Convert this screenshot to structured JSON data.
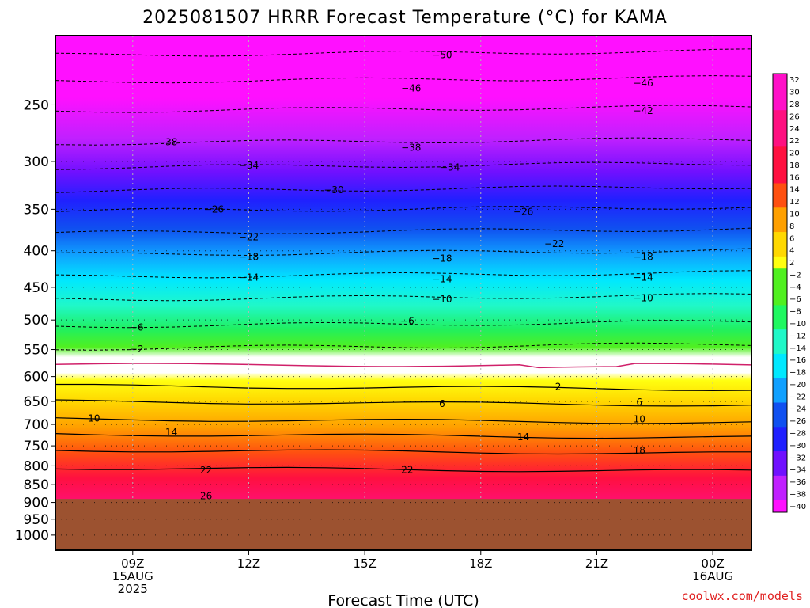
{
  "chart_data": {
    "type": "heatmap",
    "title": "2025081507 HRRR Forecast Temperature (°C) for KAMA",
    "xlabel": "Forecast Time (UTC)",
    "ylabel": "",
    "credit": "coolwx.com/models",
    "x_range_hours": [
      7,
      25
    ],
    "y_range_hpa": [
      200,
      1050
    ],
    "y_scale": "log",
    "y_ticks": [
      250,
      300,
      350,
      400,
      450,
      500,
      550,
      600,
      650,
      700,
      750,
      800,
      850,
      900,
      950,
      1000
    ],
    "x_ticks": [
      {
        "hour": 9,
        "lines": [
          "09Z",
          "15AUG",
          "2025"
        ]
      },
      {
        "hour": 12,
        "lines": [
          "12Z"
        ]
      },
      {
        "hour": 15,
        "lines": [
          "15Z"
        ]
      },
      {
        "hour": 18,
        "lines": [
          "18Z"
        ]
      },
      {
        "hour": 21,
        "lines": [
          "21Z"
        ]
      },
      {
        "hour": 24,
        "lines": [
          "00Z",
          "16AUG"
        ]
      }
    ],
    "surface_pressure_hpa": 890,
    "colors": {
      "ground": "#9c5230",
      "grid": "#b4b4b4",
      "zero_line": "#d0206a"
    },
    "colorbar": {
      "levels": [
        -40,
        -38,
        -36,
        -34,
        -32,
        -30,
        -28,
        -26,
        -24,
        -22,
        -20,
        -18,
        -16,
        -14,
        -12,
        -10,
        -8,
        -6,
        -4,
        -2,
        2,
        4,
        6,
        8,
        10,
        12,
        14,
        16,
        18,
        20,
        22,
        24,
        26,
        28,
        30,
        32
      ],
      "labels": [
        "32",
        "30",
        "28",
        "26",
        "24",
        "22",
        "20",
        "18",
        "16",
        "14",
        "12",
        "10",
        "8",
        "6",
        "4",
        "2",
        "−2",
        "−4",
        "−6",
        "−8",
        "−10",
        "−12",
        "−14",
        "−16",
        "−18",
        "−20",
        "−22",
        "−24",
        "−26",
        "−28",
        "−30",
        "−32",
        "−34",
        "−36",
        "−38",
        "−40"
      ]
    },
    "contour_labels": [
      {
        "hour": 17.0,
        "hpa": 213,
        "text": "−50"
      },
      {
        "hour": 16.2,
        "hpa": 237,
        "text": "−46"
      },
      {
        "hour": 22.2,
        "hpa": 233,
        "text": "−46"
      },
      {
        "hour": 22.2,
        "hpa": 255,
        "text": "−42"
      },
      {
        "hour": 9.9,
        "hpa": 282,
        "text": "−38"
      },
      {
        "hour": 16.2,
        "hpa": 287,
        "text": "−38"
      },
      {
        "hour": 12.0,
        "hpa": 304,
        "text": "−34"
      },
      {
        "hour": 17.2,
        "hpa": 306,
        "text": "−34"
      },
      {
        "hour": 14.2,
        "hpa": 329,
        "text": "−30"
      },
      {
        "hour": 11.1,
        "hpa": 350,
        "text": "−26"
      },
      {
        "hour": 19.1,
        "hpa": 353,
        "text": "−26"
      },
      {
        "hour": 12.0,
        "hpa": 383,
        "text": "−22"
      },
      {
        "hour": 19.9,
        "hpa": 391,
        "text": "−22"
      },
      {
        "hour": 12.0,
        "hpa": 408,
        "text": "−18"
      },
      {
        "hour": 17.0,
        "hpa": 410,
        "text": "−18"
      },
      {
        "hour": 22.2,
        "hpa": 408,
        "text": "−18"
      },
      {
        "hour": 12.0,
        "hpa": 436,
        "text": "−14"
      },
      {
        "hour": 17.0,
        "hpa": 438,
        "text": "−14"
      },
      {
        "hour": 22.2,
        "hpa": 436,
        "text": "−14"
      },
      {
        "hour": 17.0,
        "hpa": 468,
        "text": "−10"
      },
      {
        "hour": 22.2,
        "hpa": 466,
        "text": "−10"
      },
      {
        "hour": 9.1,
        "hpa": 512,
        "text": "−6"
      },
      {
        "hour": 16.1,
        "hpa": 502,
        "text": "−6"
      },
      {
        "hour": 9.1,
        "hpa": 549,
        "text": "−2"
      },
      {
        "hour": 20.0,
        "hpa": 620,
        "text": "2"
      },
      {
        "hour": 17.0,
        "hpa": 655,
        "text": "6"
      },
      {
        "hour": 22.1,
        "hpa": 652,
        "text": "6"
      },
      {
        "hour": 8.0,
        "hpa": 687,
        "text": "10"
      },
      {
        "hour": 22.1,
        "hpa": 688,
        "text": "10"
      },
      {
        "hour": 10.0,
        "hpa": 718,
        "text": "14"
      },
      {
        "hour": 19.1,
        "hpa": 729,
        "text": "14"
      },
      {
        "hour": 22.1,
        "hpa": 761,
        "text": "18"
      },
      {
        "hour": 10.9,
        "hpa": 812,
        "text": "22"
      },
      {
        "hour": 16.1,
        "hpa": 810,
        "text": "22"
      },
      {
        "hour": 10.9,
        "hpa": 882,
        "text": "26"
      }
    ]
  }
}
